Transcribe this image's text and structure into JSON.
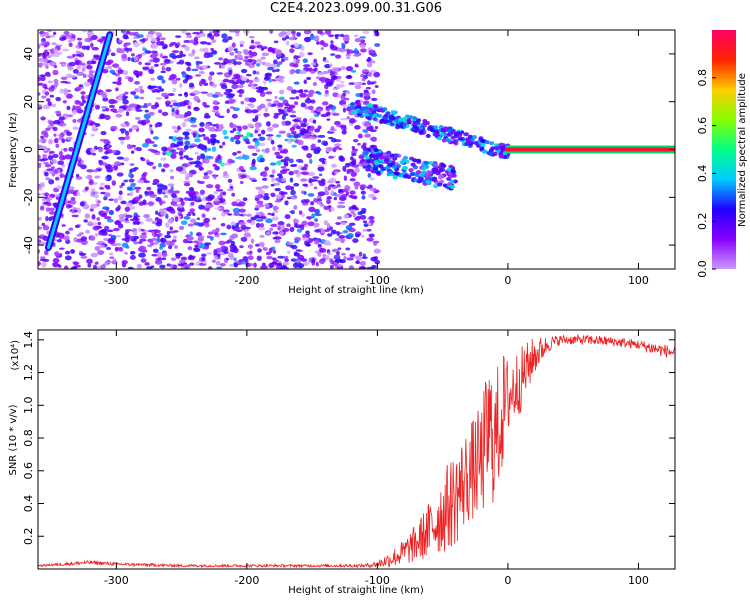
{
  "title": "C2E4.2023.099.00.31.G06",
  "colors": {
    "snr_line": "#ee2222",
    "plot_frame": "#000000"
  },
  "chart_data": [
    {
      "type": "heatmap",
      "xlabel": "Height of straight line (km)",
      "ylabel": "Frequency (Hz)",
      "xlim": [
        -360,
        128
      ],
      "ylim": [
        -50,
        50
      ],
      "x_ticks": [
        -300,
        -200,
        -100,
        0,
        100
      ],
      "x_tick_labels": [
        "-300",
        "-200",
        "-100",
        "0",
        "100"
      ],
      "y_ticks": [
        -40,
        -20,
        0,
        20,
        40
      ],
      "y_tick_labels": [
        "-40",
        "-20",
        "0",
        "20",
        "40"
      ],
      "colorbar": {
        "label": "Normalized spectral amplitude",
        "range": [
          0,
          1
        ],
        "ticks": [
          0.0,
          0.2,
          0.4,
          0.6,
          0.8
        ],
        "tick_labels": [
          "0.0",
          "0.2",
          "0.4",
          "0.6",
          "0.8"
        ],
        "colormap": [
          "#ffffff",
          "#cc99ff",
          "#8800ff",
          "#2200ff",
          "#00ccff",
          "#00ff88",
          "#88ff00",
          "#ffcc00",
          "#ff2200",
          "#ff0066"
        ]
      },
      "features": [
        {
          "name": "diagonal streak",
          "x": [
            -352,
            -305
          ],
          "y": [
            -41,
            48
          ],
          "amplitude": 0.4
        },
        {
          "name": "horizontal carrier",
          "x": [
            0,
            128
          ],
          "y": [
            0,
            0
          ],
          "amplitude": 0.95
        }
      ],
      "grid": false
    },
    {
      "type": "line",
      "xlabel": "Height of straight line (km)",
      "ylabel": "SNR (10 * v/v)",
      "y_scale_label": "(x10⁴)",
      "xlim": [
        -360,
        128
      ],
      "ylim": [
        0,
        1.46
      ],
      "x_ticks": [
        -300,
        -200,
        -100,
        0,
        100
      ],
      "x_tick_labels": [
        "-300",
        "-200",
        "-100",
        "0",
        "100"
      ],
      "y_ticks": [
        0.2,
        0.4,
        0.6,
        0.8,
        1.0,
        1.2,
        1.4
      ],
      "y_tick_labels": [
        "0.2",
        "0.4",
        "0.6",
        "0.8",
        "1.0",
        "1.2",
        "1.4"
      ],
      "series": [
        {
          "color": "#ee2222",
          "x": [
            -360,
            -340,
            -320,
            -300,
            -250,
            -200,
            -150,
            -110,
            -100,
            -90,
            -80,
            -70,
            -60,
            -50,
            -40,
            -30,
            -20,
            -15,
            -10,
            -5,
            0,
            10,
            20,
            30,
            40,
            60,
            80,
            100,
            110,
            128
          ],
          "y": [
            0.02,
            0.03,
            0.04,
            0.03,
            0.02,
            0.02,
            0.02,
            0.02,
            0.03,
            0.06,
            0.1,
            0.16,
            0.24,
            0.34,
            0.44,
            0.58,
            0.66,
            0.85,
            0.78,
            0.95,
            1.05,
            1.16,
            1.3,
            1.37,
            1.4,
            1.4,
            1.39,
            1.37,
            1.35,
            1.32
          ],
          "noise_band": [
            0.005,
            0.01,
            0.012,
            0.01,
            0.008,
            0.008,
            0.008,
            0.01,
            0.02,
            0.05,
            0.08,
            0.12,
            0.18,
            0.25,
            0.3,
            0.3,
            0.35,
            0.45,
            0.4,
            0.4,
            0.25,
            0.2,
            0.12,
            0.05,
            0.03,
            0.03,
            0.03,
            0.03,
            0.04,
            0.04
          ]
        }
      ],
      "grid": false
    }
  ]
}
